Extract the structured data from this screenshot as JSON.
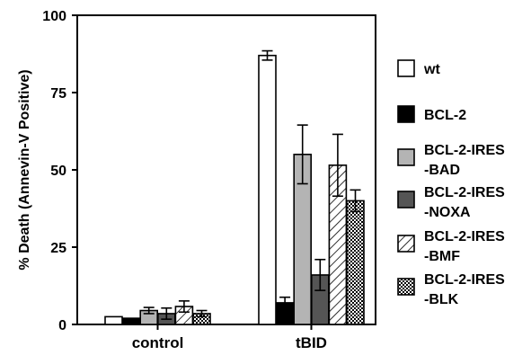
{
  "chart_data": {
    "type": "bar",
    "title": "",
    "xlabel": "",
    "ylabel": "% Death (Annevin-V Positive)",
    "ylim": [
      0,
      100
    ],
    "yticks": [
      "0",
      "25",
      "50",
      "75",
      "100"
    ],
    "categories": [
      "control",
      "tBID"
    ],
    "legend_position": "right",
    "series": [
      {
        "name": "wt",
        "values": [
          2.5,
          87
        ],
        "errors": [
          0,
          1.5
        ],
        "fill": "white",
        "color": "#ffffff"
      },
      {
        "name": "BCL-2",
        "values": [
          2.0,
          7
        ],
        "errors": [
          0,
          1.8
        ],
        "fill": "solid",
        "color": "#000000"
      },
      {
        "name": "BCL-2-IRES -BAD",
        "values": [
          4.5,
          55
        ],
        "errors": [
          1.0,
          9.5
        ],
        "fill": "solid",
        "color": "#b4b4b4"
      },
      {
        "name": "BCL-2-IRES -NOXA",
        "values": [
          3.5,
          16
        ],
        "errors": [
          1.8,
          5.0
        ],
        "fill": "solid",
        "color": "#555555"
      },
      {
        "name": "BCL-2-IRES -BMF",
        "values": [
          5.8,
          51.5
        ],
        "errors": [
          1.8,
          10.0
        ],
        "fill": "diagonal",
        "color": "#000000"
      },
      {
        "name": "BCL-2-IRES -BLK",
        "values": [
          3.5,
          40
        ],
        "errors": [
          1.0,
          3.5
        ],
        "fill": "grid",
        "color": "#000000"
      }
    ]
  }
}
